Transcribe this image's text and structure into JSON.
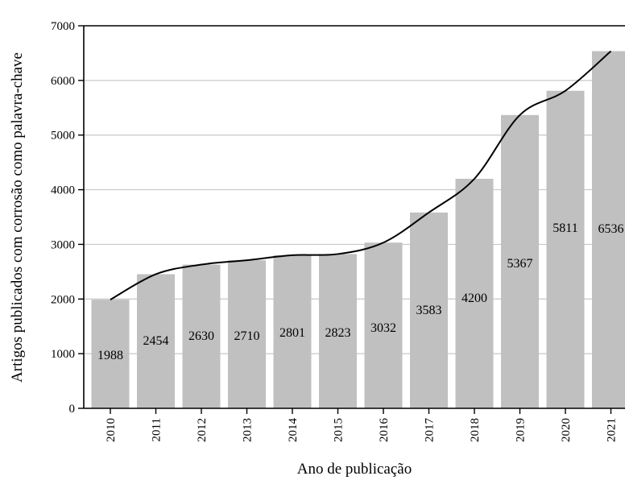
{
  "chart_data": {
    "type": "bar",
    "categories": [
      "2010",
      "2011",
      "2012",
      "2013",
      "2014",
      "2015",
      "2016",
      "2017",
      "2018",
      "2019",
      "2020",
      "2021"
    ],
    "values": [
      1988,
      2454,
      2630,
      2710,
      2801,
      2823,
      3032,
      3583,
      4200,
      5367,
      5811,
      6536
    ],
    "data_labels": [
      "1988",
      "2454",
      "2630",
      "2710",
      "2801",
      "2823",
      "3032",
      "3583",
      "4200",
      "5367",
      "5811",
      "6536"
    ],
    "xlabel": "Ano de publicação",
    "ylabel": "Artigos publicados com corrosão como palavra-chave",
    "ylim": [
      0,
      7000
    ],
    "yticks": [
      "0",
      "1000",
      "2000",
      "3000",
      "4000",
      "5000",
      "6000",
      "7000"
    ],
    "grid": true,
    "trend_line": true,
    "colors": {
      "bar": "#c0c0c0",
      "line": "#000000",
      "grid": "#c8c8c8"
    }
  }
}
